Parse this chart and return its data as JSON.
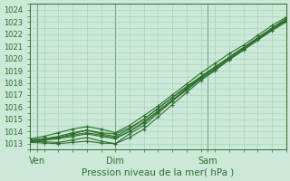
{
  "xlabel": "Pression niveau de la mer( hPa )",
  "bg_color": "#cce8d8",
  "grid_color": "#9fcfb0",
  "line_color": "#2d6e2d",
  "ylim": [
    1012.5,
    1024.5
  ],
  "xlim": [
    0,
    72
  ],
  "xtick_positions": [
    2,
    24,
    50
  ],
  "xtick_labels": [
    "Ven",
    "Dim",
    "Sam"
  ],
  "ytick_values": [
    1013,
    1014,
    1015,
    1016,
    1017,
    1018,
    1019,
    1020,
    1021,
    1022,
    1023,
    1024
  ],
  "lines": [
    {
      "x": [
        0,
        4,
        8,
        12,
        16,
        20,
        24,
        28,
        32,
        36,
        40,
        44,
        48,
        52,
        56,
        60,
        64,
        68,
        72
      ],
      "y": [
        1013.2,
        1013.15,
        1013.1,
        1013.3,
        1013.5,
        1013.2,
        1013.0,
        1013.8,
        1014.5,
        1015.5,
        1016.5,
        1017.5,
        1018.5,
        1019.3,
        1020.1,
        1020.9,
        1021.7,
        1022.5,
        1023.3
      ]
    },
    {
      "x": [
        0,
        4,
        8,
        12,
        16,
        20,
        24,
        28,
        32,
        36,
        40,
        44,
        48,
        52,
        56,
        60,
        64,
        68,
        72
      ],
      "y": [
        1013.1,
        1013.05,
        1013.0,
        1013.1,
        1013.2,
        1013.05,
        1013.0,
        1013.5,
        1014.2,
        1015.2,
        1016.2,
        1017.2,
        1018.2,
        1019.0,
        1019.9,
        1020.7,
        1021.6,
        1022.4,
        1023.1
      ]
    },
    {
      "x": [
        0,
        4,
        8,
        12,
        16,
        20,
        24,
        28,
        32,
        36,
        40,
        44,
        48,
        52,
        56,
        60,
        64,
        68,
        72
      ],
      "y": [
        1013.3,
        1013.4,
        1013.5,
        1013.7,
        1013.9,
        1013.7,
        1013.5,
        1014.0,
        1014.8,
        1015.7,
        1016.6,
        1017.5,
        1018.4,
        1019.2,
        1020.0,
        1020.8,
        1021.6,
        1022.4,
        1023.2
      ]
    },
    {
      "x": [
        0,
        4,
        8,
        12,
        16,
        20,
        24,
        28,
        32,
        36,
        40,
        44,
        48,
        52,
        56,
        60,
        64,
        68,
        72
      ],
      "y": [
        1013.2,
        1013.3,
        1013.5,
        1013.8,
        1014.1,
        1013.9,
        1013.8,
        1014.3,
        1015.0,
        1015.9,
        1016.8,
        1017.7,
        1018.5,
        1019.3,
        1020.1,
        1020.9,
        1021.7,
        1022.4,
        1023.2
      ]
    },
    {
      "x": [
        0,
        4,
        8,
        12,
        16,
        20,
        24,
        28,
        32,
        36,
        40,
        44,
        48,
        52,
        56,
        60,
        64,
        68,
        72
      ],
      "y": [
        1013.4,
        1013.6,
        1013.9,
        1014.2,
        1014.4,
        1014.2,
        1013.9,
        1014.5,
        1015.3,
        1016.1,
        1017.0,
        1017.9,
        1018.8,
        1019.6,
        1020.4,
        1021.1,
        1021.9,
        1022.7,
        1023.4
      ]
    },
    {
      "x": [
        0,
        4,
        8,
        12,
        16,
        20,
        24,
        28,
        32,
        36,
        40,
        44,
        48,
        52,
        56,
        60,
        64,
        68,
        72
      ],
      "y": [
        1013.2,
        1013.3,
        1013.4,
        1013.6,
        1013.8,
        1013.6,
        1013.4,
        1014.0,
        1014.7,
        1015.6,
        1016.5,
        1017.4,
        1018.3,
        1019.1,
        1019.9,
        1020.7,
        1021.5,
        1022.3,
        1023.0
      ]
    },
    {
      "x": [
        0,
        4,
        8,
        12,
        16,
        20,
        24,
        28,
        32,
        36,
        40,
        44,
        48,
        52,
        56,
        60,
        64,
        68,
        72
      ],
      "y": [
        1013.3,
        1013.4,
        1013.6,
        1013.9,
        1014.1,
        1013.8,
        1013.6,
        1014.2,
        1015.0,
        1015.9,
        1016.8,
        1017.6,
        1018.5,
        1019.3,
        1020.1,
        1020.9,
        1021.6,
        1022.4,
        1023.1
      ]
    }
  ],
  "marker": "+",
  "markersize": 3,
  "linewidth": 0.8
}
